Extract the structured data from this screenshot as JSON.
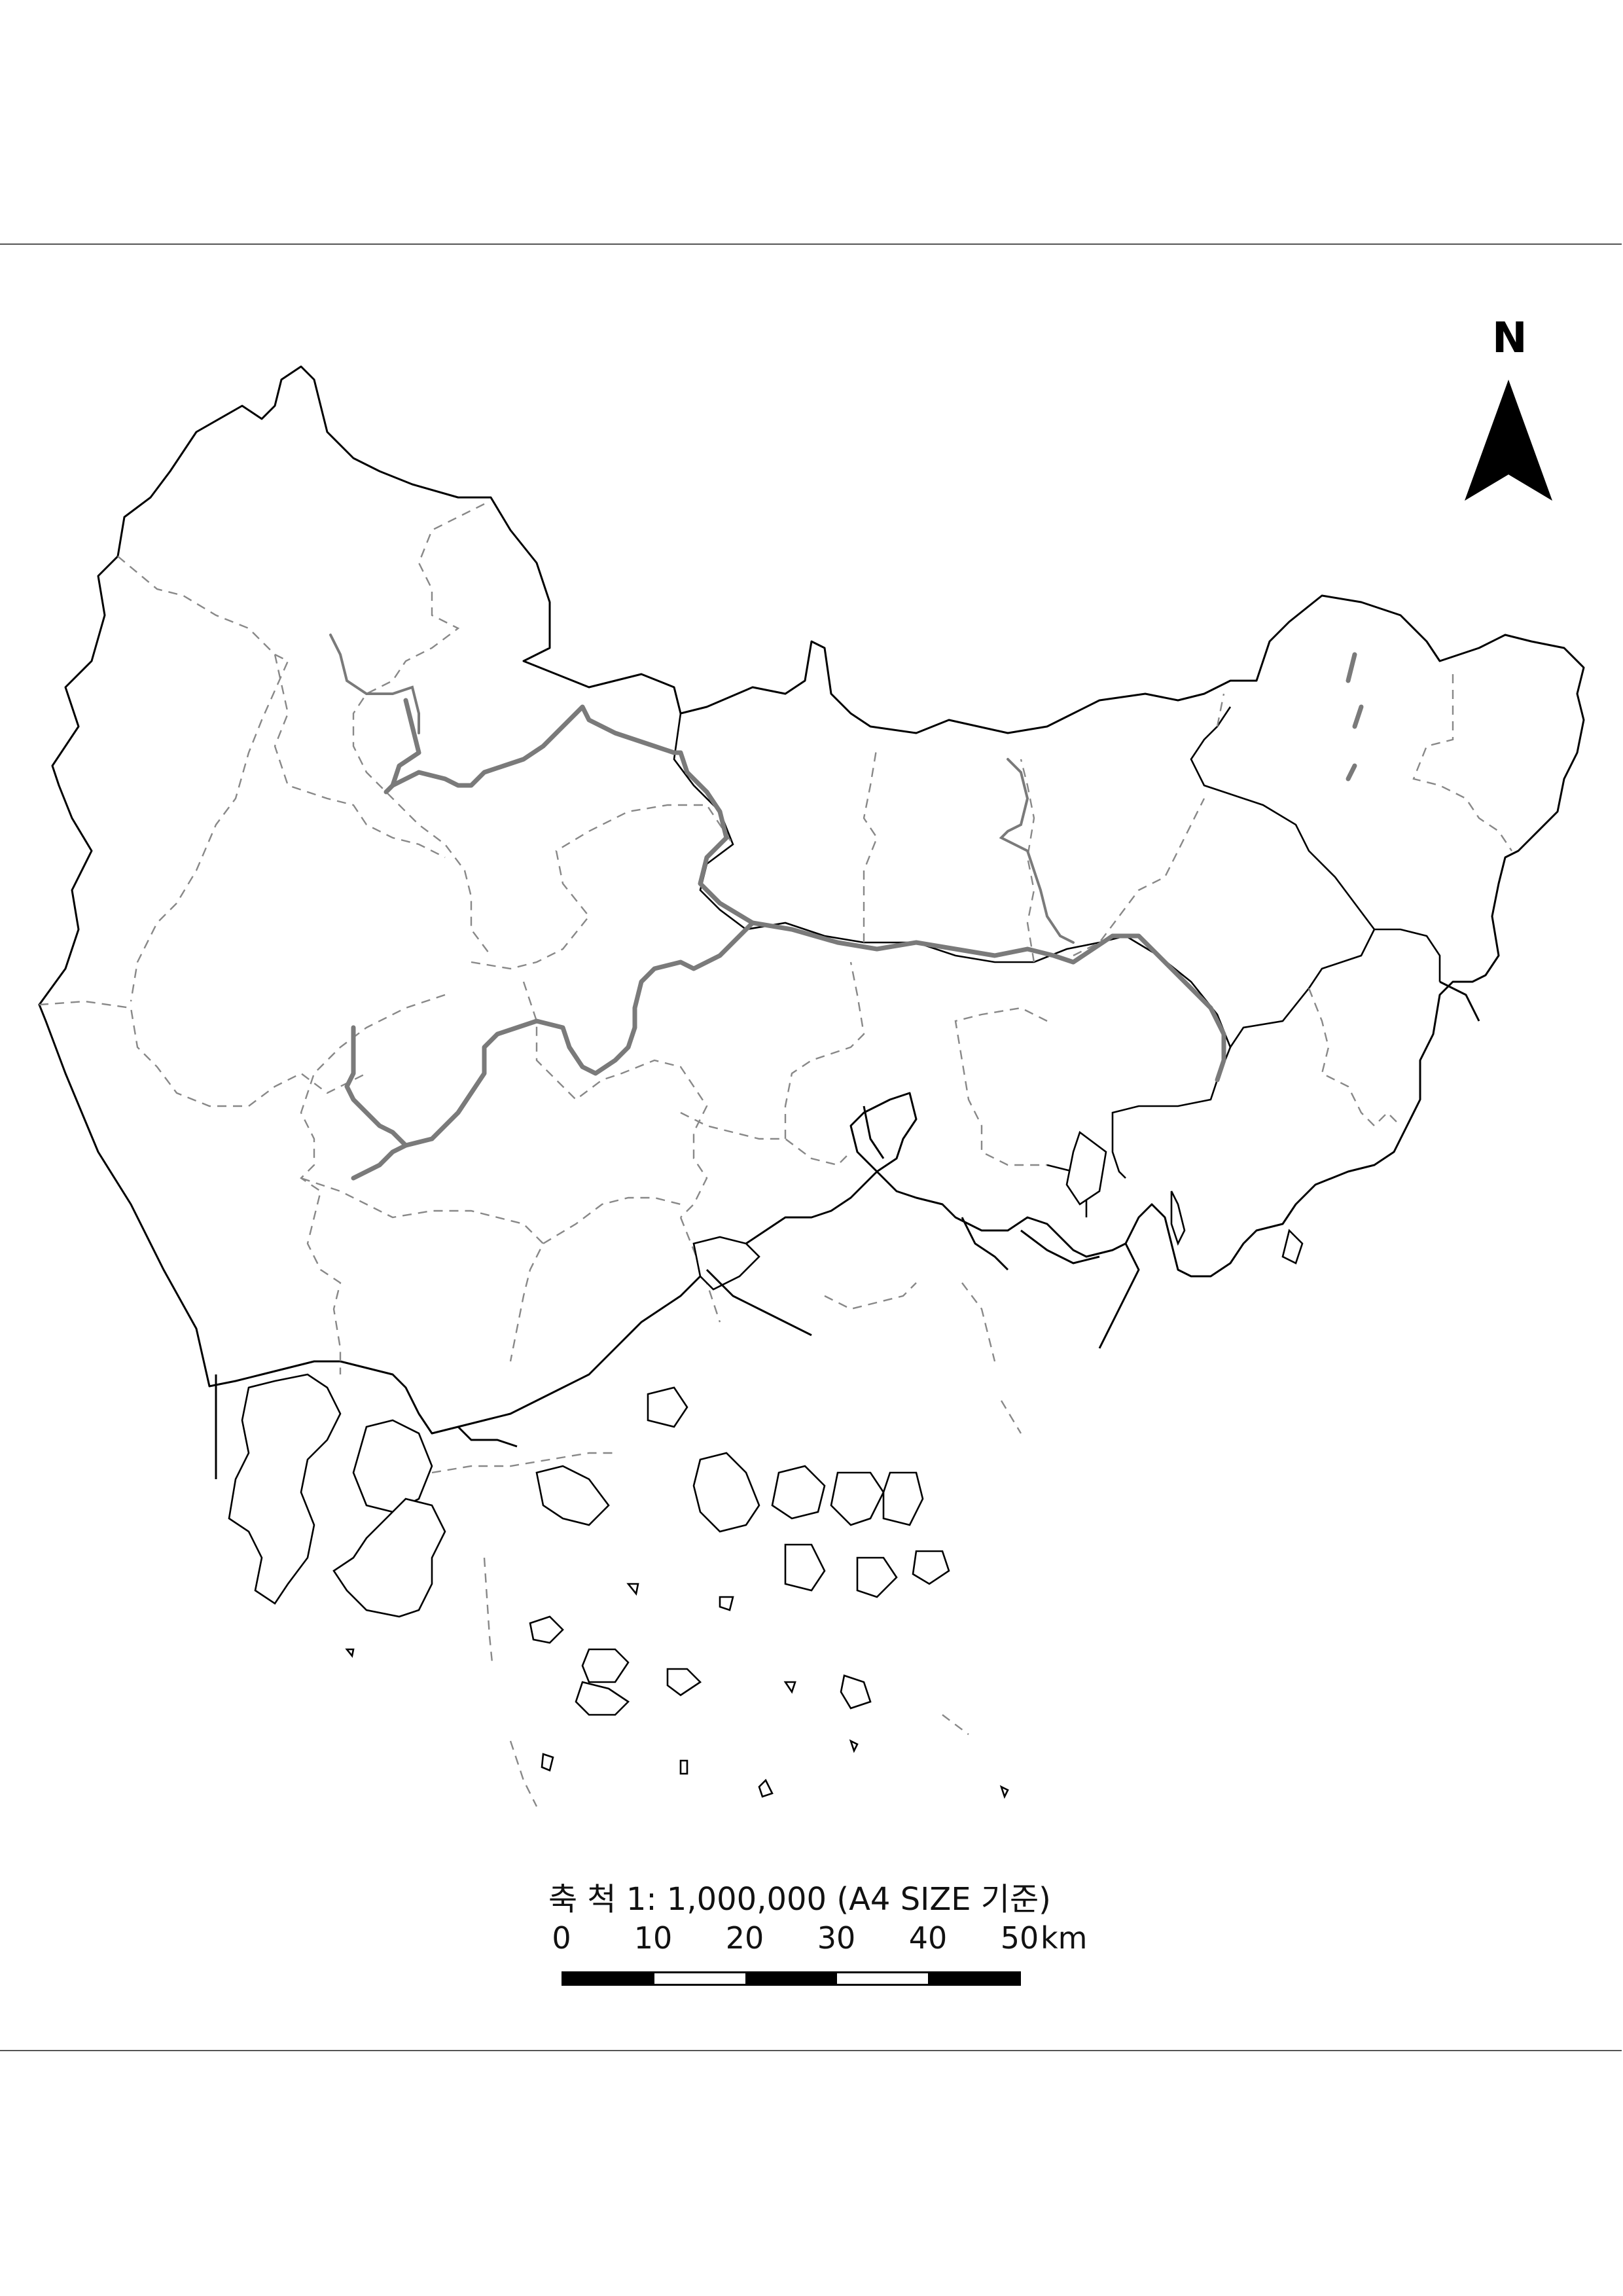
{
  "map": {
    "north_label": "N",
    "scale_title": "축 척 1: 1,000,000 (A4 SIZE 기준)",
    "scale_ticks": [
      "0",
      "10",
      "20",
      "30",
      "40",
      "50"
    ],
    "scale_unit": "km",
    "colors": {
      "boundary": "#000000",
      "district_line": "#888888",
      "river": "#7a7a7a",
      "background": "#ffffff"
    }
  }
}
